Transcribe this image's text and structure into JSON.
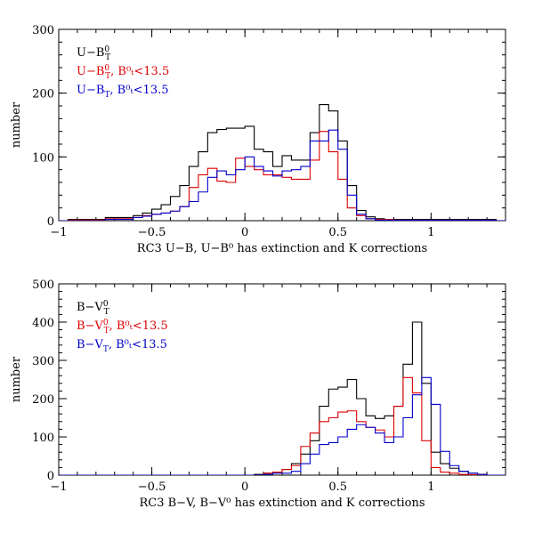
{
  "chart_data": [
    {
      "type": "step",
      "xlabel": "RC3 U−B, U−B⁰ has extinction and K corrections",
      "ylabel": "number",
      "xlim": [
        -1.0,
        1.4
      ],
      "ylim": [
        0,
        300
      ],
      "bin_width": 0.05,
      "xticks": [
        -1,
        -0.5,
        0,
        0.5,
        1
      ],
      "xtick_labels": [
        "−1",
        "−0.5",
        "0",
        "0.5",
        "1"
      ],
      "yticks": [
        0,
        100,
        200,
        300
      ],
      "ytick_labels": [
        "0",
        "100",
        "200",
        "300"
      ],
      "legend_position": "top-left",
      "series": [
        {
          "label": {
            "main": "U−B",
            "sup": "0",
            "sub": "T",
            "tail": ""
          },
          "color": "#000000",
          "bin_start": -0.95,
          "values": [
            2,
            2,
            2,
            2,
            5,
            5,
            5,
            8,
            12,
            18,
            25,
            38,
            55,
            85,
            108,
            138,
            143,
            145,
            145,
            148,
            112,
            108,
            85,
            102,
            95,
            95,
            138,
            182,
            172,
            125,
            55,
            16,
            6,
            3,
            2,
            2,
            2,
            2,
            2,
            2,
            2,
            2,
            2,
            2,
            2,
            2
          ]
        },
        {
          "label": {
            "main": "U−B",
            "sup": "0",
            "sub": "T",
            "tail": ", B⁰ₜ<13.5"
          },
          "color": "#dd0000",
          "bin_start": -0.95,
          "values": [
            1,
            1,
            1,
            1,
            3,
            3,
            3,
            5,
            8,
            10,
            12,
            15,
            22,
            52,
            72,
            82,
            62,
            60,
            98,
            85,
            80,
            72,
            72,
            68,
            65,
            65,
            95,
            140,
            108,
            65,
            20,
            8,
            3,
            2,
            2,
            1,
            1,
            1,
            1,
            1,
            1,
            1,
            1,
            1,
            1,
            1
          ]
        },
        {
          "label": {
            "main": "U−B",
            "sup": "",
            "sub": "T",
            "tail": ", B⁰ₜ<13.5"
          },
          "color": "#0000cc",
          "bin_start": -0.95,
          "values": [
            0,
            0,
            0,
            0,
            2,
            2,
            2,
            5,
            7,
            10,
            12,
            15,
            22,
            30,
            45,
            68,
            78,
            72,
            80,
            100,
            85,
            78,
            70,
            78,
            80,
            85,
            125,
            125,
            142,
            112,
            40,
            10,
            3,
            1,
            1,
            1,
            1,
            1,
            1,
            1,
            1,
            1,
            1,
            1,
            1,
            1
          ]
        }
      ]
    },
    {
      "type": "step",
      "xlabel": "RC3 B−V, B−V⁰ has extinction and K corrections",
      "ylabel": "number",
      "xlim": [
        -1.0,
        1.4
      ],
      "ylim": [
        0,
        500
      ],
      "bin_width": 0.05,
      "xticks": [
        -1,
        -0.5,
        0,
        0.5,
        1
      ],
      "xtick_labels": [
        "−1",
        "−0.5",
        "0",
        "0.5",
        "1"
      ],
      "yticks": [
        0,
        100,
        200,
        300,
        400,
        500
      ],
      "ytick_labels": [
        "0",
        "100",
        "200",
        "300",
        "400",
        "500"
      ],
      "legend_position": "top-left",
      "series": [
        {
          "label": {
            "main": "B−V",
            "sup": "0",
            "sub": "T",
            "tail": ""
          },
          "color": "#000000",
          "bin_start": 0.05,
          "values": [
            2,
            5,
            8,
            15,
            30,
            55,
            90,
            180,
            225,
            230,
            250,
            200,
            155,
            148,
            155,
            180,
            290,
            400,
            240,
            60,
            30,
            18,
            10,
            5,
            2
          ]
        },
        {
          "label": {
            "main": "B−V",
            "sup": "0",
            "sub": "T",
            "tail": ", B⁰ₜ<13.5"
          },
          "color": "#dd0000",
          "bin_start": 0.05,
          "values": [
            0,
            5,
            8,
            15,
            25,
            75,
            110,
            140,
            150,
            165,
            168,
            140,
            125,
            118,
            100,
            180,
            255,
            215,
            90,
            20,
            8,
            5,
            2,
            1,
            0
          ]
        },
        {
          "label": {
            "main": "B−V",
            "sup": "",
            "sub": "T",
            "tail": ", B⁰ₜ<13.5"
          },
          "color": "#0000cc",
          "bin_start": 0.05,
          "values": [
            0,
            2,
            5,
            5,
            10,
            30,
            55,
            80,
            85,
            100,
            120,
            132,
            125,
            110,
            85,
            100,
            150,
            210,
            255,
            185,
            62,
            25,
            10,
            5,
            2
          ]
        }
      ]
    }
  ]
}
